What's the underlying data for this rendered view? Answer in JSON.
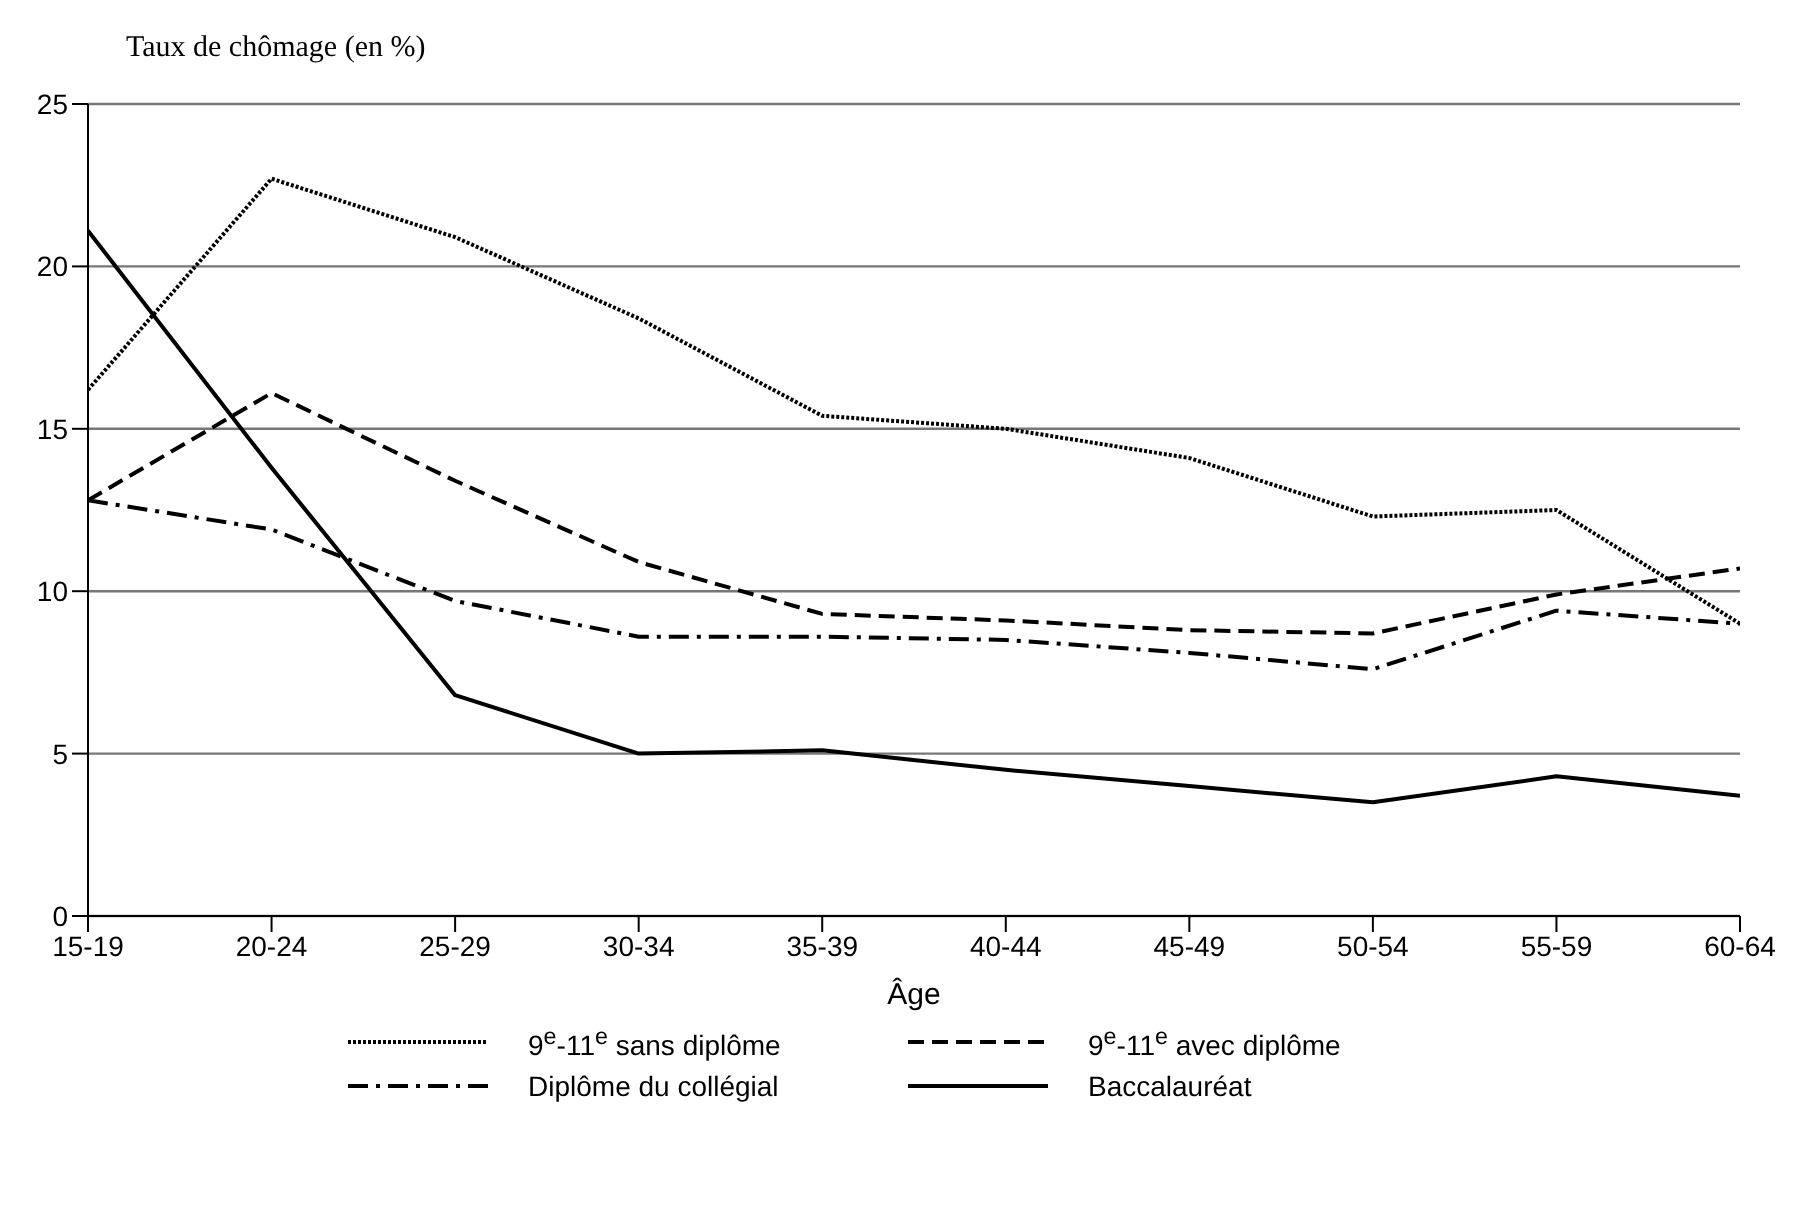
{
  "chart_data": {
    "type": "line",
    "ylabel": "Taux de chômage (en %)",
    "xlabel": "Âge",
    "categories": [
      "15-19",
      "20-24",
      "25-29",
      "30-34",
      "35-39",
      "40-44",
      "45-49",
      "50-54",
      "55-59",
      "60-64"
    ],
    "series": [
      {
        "name": "9$^{e}$-11$^{e}$ sans diplôme",
        "color": "#000000",
        "line_style": "dotted",
        "values": [
          16.2,
          22.7,
          20.9,
          18.4,
          15.4,
          15.0,
          14.1,
          12.3,
          12.5,
          9.0
        ]
      },
      {
        "name": "9$^{e}$-11$^{e}$ avec diplôme",
        "color": "#000000",
        "line_style": "dashed",
        "values": [
          12.8,
          16.1,
          13.4,
          10.9,
          9.3,
          9.1,
          8.8,
          8.7,
          9.9,
          10.7
        ]
      },
      {
        "name": "Diplôme du collégial",
        "color": "#000000",
        "line_style": "dashdot",
        "values": [
          12.8,
          11.9,
          9.7,
          8.6,
          8.6,
          8.5,
          8.1,
          7.6,
          9.4,
          9.0
        ]
      },
      {
        "name": "Baccalauréat",
        "color": "#000000",
        "line_style": "solid",
        "values": [
          21.1,
          13.8,
          6.8,
          5.0,
          5.1,
          4.5,
          4.0,
          3.5,
          4.3,
          3.7
        ]
      }
    ],
    "ylim": [
      0,
      25
    ],
    "yticks": [
      0,
      5,
      10,
      15,
      20,
      25
    ],
    "grid": "y",
    "legend": "bottom",
    "marker": "none"
  }
}
